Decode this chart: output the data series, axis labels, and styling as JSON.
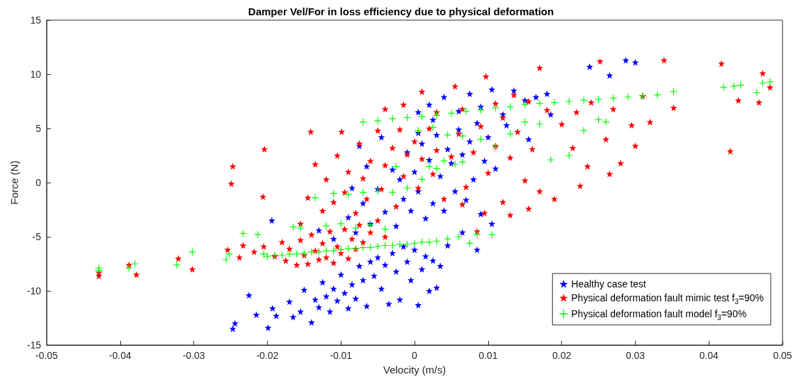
{
  "chart_data": {
    "type": "scatter",
    "title": "Damper Vel/For in loss efficiency due to physical deformation",
    "xlabel": "Velocity (m/s)",
    "ylabel": "Force (N)",
    "xlim": [
      -0.05,
      0.05
    ],
    "xticks": [
      -0.05,
      -0.04,
      -0.03,
      -0.02,
      -0.01,
      0,
      0.01,
      0.02,
      0.03,
      0.04,
      0.05
    ],
    "ylim": [
      -15,
      15
    ],
    "yticks": [
      -15,
      -10,
      -5,
      0,
      5,
      10,
      15
    ],
    "grid": false,
    "legend": "bottom right",
    "series": [
      {
        "name": "Healthy case test",
        "color": "#0000ff",
        "marker": "star",
        "x": [
          -0.0244,
          -0.0247,
          -0.0199,
          -0.0225,
          -0.0215,
          -0.0188,
          -0.0193,
          -0.0165,
          -0.017,
          -0.0155,
          -0.015,
          -0.014,
          -0.0135,
          -0.013,
          -0.0125,
          -0.012,
          -0.0115,
          -0.011,
          -0.0105,
          -0.01,
          -0.0095,
          -0.009,
          -0.0085,
          -0.008,
          -0.0075,
          -0.007,
          -0.0065,
          -0.006,
          -0.0055,
          -0.005,
          -0.0045,
          -0.004,
          -0.0035,
          -0.003,
          -0.0025,
          -0.002,
          -0.0015,
          -0.001,
          -0.0005,
          0,
          0.0005,
          0.001,
          0.0015,
          0.002,
          0.0025,
          0.003,
          -0.0194,
          -0.013,
          -0.011,
          -0.009,
          -0.008,
          -0.007,
          -0.006,
          -0.005,
          -0.004,
          -0.003,
          -0.0025,
          -0.002,
          -0.0015,
          -0.001,
          -0.0005,
          0,
          0.0005,
          0.001,
          0.0015,
          0.002,
          0.0025,
          0.003,
          0.0035,
          0.004,
          0.0045,
          0.005,
          0.0055,
          0.006,
          0.0065,
          0.007,
          0.0075,
          0.008,
          0.0085,
          0.009,
          0.0095,
          0.01,
          0.0105,
          0.011,
          -0.0065,
          -0.0085,
          -0.0045,
          -0.0075,
          0.0005,
          0.002,
          0.004,
          0.006,
          0.0075,
          0.009,
          0.0105,
          0.012,
          0.0135,
          0.015,
          0.0165,
          0.018,
          0.0125,
          0.0155,
          0.0185,
          0.0238,
          0.0265,
          0.0287,
          0.03,
          0.0045,
          0.0085,
          0.0035,
          0.0065,
          0.0005,
          0.0025
        ],
        "values": [
          -13.0,
          -13.5,
          -13.4,
          -10.4,
          -12.2,
          -12.3,
          -11.6,
          -12.4,
          -11.0,
          -11.9,
          -9.9,
          -12.9,
          -10.8,
          -11.5,
          -9.2,
          -10.5,
          -11.9,
          -9.8,
          -10.9,
          -8.5,
          -10.2,
          -11.6,
          -9.4,
          -10.7,
          -7.7,
          -9.0,
          -11.4,
          -7.3,
          -8.6,
          -6.9,
          -9.8,
          -7.6,
          -11.2,
          -6.5,
          -8.2,
          -10.8,
          -5.9,
          -7.3,
          -9.0,
          -6.2,
          -11.3,
          -8.0,
          -6.8,
          -10.0,
          -7.2,
          -9.7,
          -3.5,
          -4.4,
          -5.2,
          -3.2,
          -4.6,
          -1.9,
          -3.8,
          -0.6,
          -2.7,
          1.2,
          -4.0,
          0.3,
          -1.5,
          2.8,
          -2.6,
          1.0,
          -0.8,
          3.6,
          -3.3,
          2.1,
          -1.9,
          4.4,
          0.6,
          -2.6,
          3.1,
          1.8,
          -0.8,
          4.9,
          2.6,
          -1.6,
          3.8,
          0.3,
          5.5,
          -2.9,
          2.0,
          4.2,
          -3.8,
          1.3,
          1.5,
          -0.5,
          4.2,
          3.4,
          6.5,
          7.2,
          7.9,
          6.6,
          8.2,
          7.0,
          8.6,
          6.3,
          8.5,
          7.6,
          7.9,
          8.2,
          5.3,
          4.0,
          6.3,
          10.7,
          9.9,
          11.3,
          11.1,
          -5.8,
          -6.2,
          -7.7,
          -4.6,
          4.6,
          5.8
        ]
      },
      {
        "name": "Physical deformation fault mimic test f$_{3}$=90%",
        "color": "#ff0000",
        "marker": "star",
        "x": [
          -0.0429,
          -0.0429,
          -0.0388,
          -0.0378,
          -0.0321,
          -0.0302,
          -0.0254,
          -0.0247,
          -0.0249,
          -0.0204,
          -0.0206,
          -0.0238,
          -0.0233,
          -0.0218,
          -0.0205,
          -0.019,
          -0.018,
          -0.0175,
          -0.017,
          -0.016,
          -0.0155,
          -0.015,
          -0.0145,
          -0.014,
          -0.0135,
          -0.013,
          -0.0125,
          -0.012,
          -0.0115,
          -0.011,
          -0.0105,
          -0.01,
          -0.0095,
          -0.009,
          -0.0085,
          -0.008,
          -0.0075,
          -0.007,
          -0.006,
          -0.005,
          -0.004,
          -0.0155,
          -0.0145,
          -0.0135,
          -0.0125,
          -0.012,
          -0.011,
          -0.0105,
          -0.0095,
          -0.009,
          -0.008,
          -0.0075,
          -0.007,
          -0.0065,
          -0.006,
          -0.005,
          -0.0045,
          -0.004,
          -0.003,
          -0.0025,
          -0.002,
          -0.0015,
          -0.001,
          0,
          0.0005,
          0.001,
          0.002,
          0.0025,
          0.003,
          0.004,
          0.005,
          0.006,
          0.007,
          0.008,
          0.009,
          0.01,
          0.011,
          0.012,
          0.013,
          0.014,
          0.015,
          0.016,
          0.017,
          0.0095,
          0.0065,
          -0.0141,
          -0.0099,
          -0.004,
          -0.0015,
          0.001,
          0.003,
          0.0055,
          0.0065,
          0.0097,
          0.011,
          0.012,
          0.0135,
          0.0155,
          0.017,
          0.018,
          0.02,
          0.0215,
          0.022,
          0.0235,
          0.024,
          0.0252,
          0.026,
          0.027,
          0.028,
          0.0295,
          0.03,
          0.031,
          0.032,
          0.0339,
          0.0352,
          0.0417,
          0.0429,
          0.044,
          0.0468,
          0.0473,
          0.0483,
          0.0265,
          0.0225,
          0.019,
          0.0155,
          0.013,
          0.0085
        ],
        "values": [
          -8.3,
          -8.6,
          -7.6,
          -8.5,
          -7.0,
          -8.0,
          -6.2,
          1.5,
          -0.1,
          3.1,
          -1.3,
          -6.9,
          -5.8,
          -6.4,
          -5.9,
          -6.8,
          -5.5,
          -7.2,
          -6.1,
          -7.6,
          -5.3,
          -6.7,
          -7.5,
          -4.8,
          -6.3,
          -7.1,
          -5.6,
          -6.9,
          -4.5,
          -7.4,
          -5.9,
          -6.5,
          -4.3,
          -7.0,
          -5.2,
          -6.1,
          -3.9,
          -5.5,
          -4.6,
          -3.5,
          -5.0,
          -3.8,
          -1.4,
          1.7,
          -2.6,
          0.3,
          -1.8,
          2.5,
          -0.9,
          1.0,
          -2.8,
          3.6,
          0.4,
          -1.5,
          2.0,
          4.8,
          -0.6,
          1.6,
          3.2,
          -2.2,
          4.9,
          0.6,
          2.6,
          3.8,
          -0.5,
          2.2,
          5.0,
          0.8,
          3.0,
          -1.5,
          2.4,
          4.5,
          -0.4,
          2.8,
          5.2,
          0.9,
          3.4,
          -1.8,
          2.3,
          4.7,
          0.2,
          3.1,
          -0.8,
          -2.8,
          -2.0,
          4.7,
          4.7,
          6.8,
          7.2,
          8.4,
          6.5,
          8.9,
          6.8,
          9.8,
          7.3,
          6.0,
          8.1,
          7.5,
          10.6,
          6.7,
          5.4,
          3.2,
          6.5,
          1.5,
          7.4,
          11.2,
          4.0,
          6.8,
          1.8,
          5.3,
          3.4,
          8.0,
          5.6,
          11.3,
          6.9,
          11.0,
          2.9,
          7.6,
          7.4,
          10.1,
          8.8,
          0.8,
          -0.3,
          -1.5,
          -2.4,
          -3.0,
          -4.5
        ]
      },
      {
        "name": "Physical deformation fault model f$_{3}$=90%",
        "color": "#00ff00",
        "marker": "cross",
        "x": [
          -0.0429,
          -0.0429,
          -0.0388,
          -0.038,
          -0.0323,
          -0.0302,
          -0.0256,
          -0.0252,
          -0.0233,
          -0.0213,
          -0.0205,
          -0.02,
          -0.019,
          -0.018,
          -0.017,
          -0.016,
          -0.015,
          -0.014,
          -0.013,
          -0.012,
          -0.011,
          -0.01,
          -0.009,
          -0.008,
          -0.007,
          -0.006,
          -0.005,
          -0.004,
          -0.003,
          -0.002,
          -0.001,
          0,
          0.001,
          0.002,
          0.003,
          -0.0165,
          -0.0155,
          -0.012,
          -0.01,
          -0.008,
          -0.006,
          -0.004,
          0.0045,
          0.006,
          0.0085,
          0.0105,
          0.0075,
          -0.0135,
          -0.011,
          -0.009,
          -0.007,
          -0.005,
          -0.003,
          -0.001,
          0.001,
          0.002,
          0.003,
          0.004,
          0.0055,
          0.0065,
          -0.0025,
          0.0005,
          0.0025,
          0.0045,
          0.0065,
          0.009,
          0.011,
          0.013,
          0.015,
          0.017,
          0.0185,
          0.021,
          0.023,
          0.025,
          0.026,
          -0.007,
          -0.005,
          -0.003,
          -0.001,
          0.001,
          0.003,
          0.005,
          0.007,
          0.009,
          0.011,
          0.013,
          0.015,
          0.017,
          0.019,
          0.021,
          0.023,
          0.025,
          0.027,
          0.029,
          0.031,
          0.033,
          0.0352,
          0.042,
          0.0434,
          0.0443,
          0.0465,
          0.0473,
          0.0483
        ],
        "values": [
          -8.1,
          -7.9,
          -7.9,
          -7.5,
          -7.6,
          -6.4,
          -7.1,
          -6.6,
          -4.7,
          -4.8,
          -6.6,
          -6.8,
          -6.7,
          -6.7,
          -6.6,
          -6.6,
          -6.5,
          -6.4,
          -6.4,
          -6.3,
          -6.3,
          -6.2,
          -6.1,
          -6.1,
          -6.0,
          -6.0,
          -5.9,
          -5.8,
          -5.8,
          -5.7,
          -5.7,
          -5.6,
          -5.5,
          -5.5,
          -5.4,
          -4.1,
          -4.2,
          -4.0,
          -3.8,
          -4.2,
          -3.9,
          -4.3,
          -5.2,
          -5.0,
          -4.8,
          -4.8,
          -5.6,
          -1.4,
          -1.0,
          -1.1,
          -0.9,
          -0.8,
          -0.9,
          -0.5,
          0.3,
          1.5,
          1.3,
          2.0,
          1.7,
          1.9,
          1.5,
          4.8,
          5.1,
          4.4,
          4.3,
          4.0,
          3.3,
          4.5,
          5.6,
          5.4,
          2.1,
          2.5,
          4.8,
          5.8,
          5.6,
          5.6,
          5.7,
          5.9,
          6.0,
          6.1,
          6.2,
          6.4,
          6.6,
          6.7,
          6.9,
          7.0,
          7.2,
          7.3,
          7.4,
          7.5,
          7.6,
          7.7,
          7.8,
          7.9,
          8.0,
          8.1,
          8.4,
          8.8,
          8.9,
          9.0,
          8.3,
          9.2,
          9.3
        ]
      }
    ]
  }
}
